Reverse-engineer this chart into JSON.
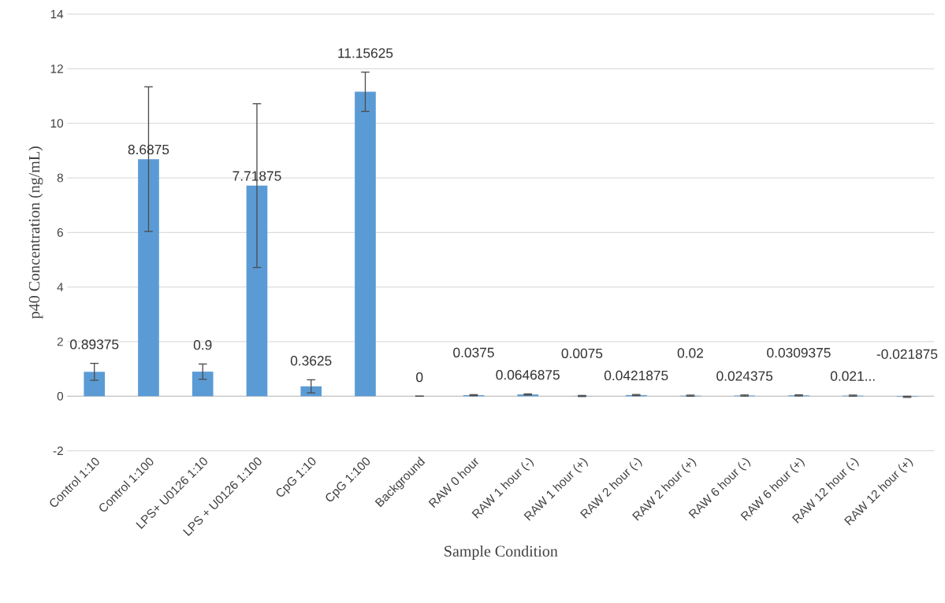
{
  "chart_data": {
    "type": "bar",
    "xlabel": "Sample Condition",
    "ylabel": "p40 Concentration (ng/mL)",
    "categories": [
      "Control 1:10",
      "Control 1:100",
      "LPS+ U0126 1:10",
      "LPS + U0126 1:100",
      "CpG 1:10",
      "CpG 1:100",
      "Background",
      "RAW 0 hour",
      "RAW 1 hour (-)",
      "RAW 1 hour (+)",
      "RAW 2 hour (-)",
      "RAW 2 hour (+)",
      "RAW 6 hour (-)",
      "RAW 6 hour (+)",
      "RAW 12 hour (-)",
      "RAW 12 hour (+)"
    ],
    "values": [
      0.89375,
      8.6875,
      0.9,
      7.71875,
      0.3625,
      11.15625,
      0,
      0.0375,
      0.0646875,
      0.0075,
      0.0421875,
      0.02,
      0.024375,
      0.0309375,
      0.021,
      -0.021875
    ],
    "value_labels": [
      "0.89375",
      "8.6875",
      "0.9",
      "7.71875",
      "0.3625",
      "11.15625",
      "0",
      "0.0375",
      "0.0646875",
      "0.0075",
      "0.0421875",
      "0.02",
      "0.024375",
      "0.0309375",
      "0.021...",
      "-0.021875"
    ],
    "errors": [
      0.31,
      2.65,
      0.28,
      3.0,
      0.24,
      0.72,
      null,
      0.02,
      0.02,
      0.02,
      0.02,
      0.02,
      0.02,
      0.02,
      0.02,
      0.02
    ],
    "color": "#5b9bd5",
    "ylim": [
      -2,
      14
    ],
    "yticks": [
      -2,
      0,
      2,
      4,
      6,
      8,
      10,
      12,
      14
    ],
    "grid": "y"
  }
}
